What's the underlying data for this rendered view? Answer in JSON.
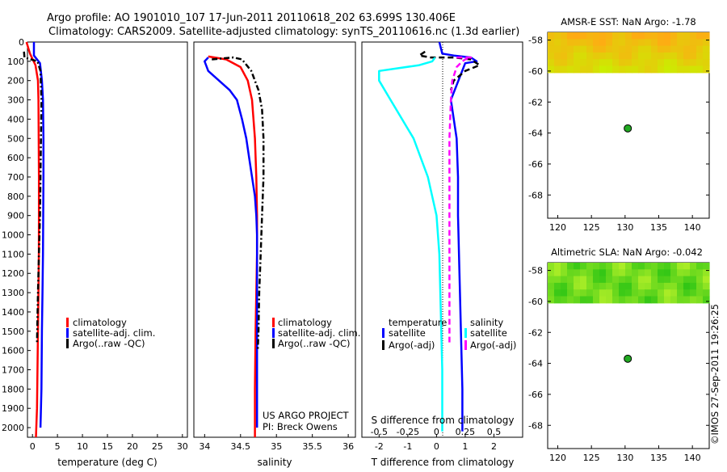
{
  "header": {
    "line1": "Argo profile: AO 1901010_107 17-Jun-2011 20110618_202 63.699S 130.406E",
    "line2": "Climatology: CARS2009. Satellite-adjusted climatology: synTS_20110616.nc (1.3d earlier)"
  },
  "credit": {
    "line1": "US ARGO PROJECT",
    "line2": "PI: Breck Owens"
  },
  "watermark": "©IMOS 27-Sep-2011 19:26:25",
  "colors": {
    "climatology": "#ff0000",
    "satellite": "#0000ff",
    "argo": "#000000",
    "satellite_diff_s": "#00ffff",
    "argo_diff_s": "#ff00ff",
    "sst_map_low": "#ffa500",
    "sst_map_high": "#c8f000",
    "sla_map": "#22cc22",
    "argo_marker": "#22aa22"
  },
  "chart_data": [
    {
      "type": "line",
      "id": "temperature",
      "xlabel": "temperature (deg C)",
      "ylabel": "",
      "xlim": [
        -1,
        31
      ],
      "ylim": [
        2050,
        0
      ],
      "xticks": [
        0,
        5,
        10,
        15,
        20,
        25,
        30
      ],
      "yticks": [
        0,
        100,
        200,
        300,
        400,
        500,
        600,
        700,
        800,
        900,
        1000,
        1100,
        1200,
        1300,
        1400,
        1500,
        1600,
        1700,
        1800,
        1900,
        2000
      ],
      "legend": [
        "climatology",
        "satellite-adj. clim.",
        "Argo(..raw -QC)"
      ],
      "series": [
        {
          "name": "climatology",
          "style": "solid",
          "color": "#ff0000",
          "x": [
            -1.2,
            -0.5,
            0.6,
            1.1,
            1.2,
            1.25,
            1.3,
            1.3,
            1.28,
            1.2,
            1.1,
            1.0,
            0.9,
            0.7
          ],
          "y": [
            0,
            60,
            120,
            200,
            300,
            500,
            700,
            900,
            1100,
            1300,
            1500,
            1700,
            1900,
            2050
          ]
        },
        {
          "name": "satellite-adj. clim.",
          "style": "solid",
          "color": "#0000ff",
          "x": [
            0.3,
            0.3,
            1.5,
            1.9,
            2.1,
            2.2,
            2.2,
            2.15,
            2.1,
            2.0,
            1.9,
            1.8,
            1.6
          ],
          "y": [
            0,
            70,
            110,
            200,
            300,
            500,
            700,
            900,
            1100,
            1300,
            1500,
            1800,
            2000
          ]
        },
        {
          "name": "Argo(..raw -QC)",
          "style": "dashdot",
          "color": "#000000",
          "x": [
            -1.7,
            -1.6,
            1.0,
            1.6,
            1.8,
            1.7,
            1.6,
            1.5,
            1.3,
            1.1,
            0.9
          ],
          "y": [
            50,
            80,
            100,
            150,
            300,
            500,
            700,
            900,
            1100,
            1300,
            1560
          ]
        }
      ]
    },
    {
      "type": "line",
      "id": "salinity",
      "xlabel": "salinity",
      "ylabel": "",
      "xlim": [
        33.85,
        36.1
      ],
      "ylim": [
        2050,
        0
      ],
      "xticks": [
        34,
        34.5,
        35,
        35.5,
        36
      ],
      "xtick_labels": [
        "34",
        "34.5",
        "35",
        "35.5",
        "36"
      ],
      "legend": [
        "climatology",
        "satellite-adj. clim.",
        "Argo(..raw -QC)"
      ],
      "series": [
        {
          "name": "climatology",
          "style": "solid",
          "color": "#ff0000",
          "x": [
            34.05,
            34.3,
            34.5,
            34.6,
            34.66,
            34.7,
            34.72,
            34.73,
            34.73,
            34.72,
            34.71,
            34.7,
            34.7
          ],
          "y": [
            75,
            90,
            130,
            200,
            300,
            500,
            700,
            900,
            1100,
            1300,
            1500,
            1800,
            2050
          ]
        },
        {
          "name": "satellite-adj. clim.",
          "style": "solid",
          "color": "#0000ff",
          "x": [
            34.05,
            34.0,
            34.05,
            34.2,
            34.35,
            34.45,
            34.52,
            34.58,
            34.62,
            34.66,
            34.7,
            34.72,
            34.73,
            34.73
          ],
          "y": [
            80,
            100,
            150,
            200,
            250,
            300,
            400,
            500,
            600,
            700,
            800,
            900,
            1000,
            2000
          ]
        },
        {
          "name": "Argo(..raw -QC)",
          "style": "dashdot",
          "color": "#000000",
          "x": [
            34.1,
            34.4,
            34.52,
            34.65,
            34.75,
            34.8,
            34.82,
            34.82,
            34.8,
            34.78,
            34.76,
            34.75,
            34.74
          ],
          "y": [
            90,
            80,
            90,
            150,
            250,
            350,
            500,
            700,
            900,
            1100,
            1300,
            1500,
            1600
          ]
        }
      ]
    },
    {
      "type": "line",
      "id": "difference",
      "xlabel": "T difference from climatology",
      "x2label": "S difference from climatology",
      "xlim": [
        -2.6,
        3.0
      ],
      "ylim": [
        2050,
        0
      ],
      "xticks": [
        -2,
        -1,
        0,
        1,
        2
      ],
      "xtick_labels": [
        "-2",
        "-1",
        "0",
        "1",
        "2"
      ],
      "x2ticks": [
        -0.5,
        -0.25,
        0,
        0.25,
        0.5
      ],
      "x2tick_labels": [
        "-0.5",
        "-0.25",
        "0",
        "0.25",
        "0.5"
      ],
      "legend_titles": [
        "temperature",
        "salinity"
      ],
      "legend": [
        "satellite",
        "Argo(-adj)",
        "satellite",
        "Argo(-adj)"
      ],
      "series": [
        {
          "name": "satellite",
          "quantity": "temperature",
          "style": "solid",
          "color": "#0000ff",
          "x": [
            0.1,
            0.2,
            0.6,
            1.2,
            1.4,
            1.0,
            0.5,
            0.7,
            0.75,
            0.75,
            0.8,
            0.85,
            0.9,
            0.9
          ],
          "y": [
            0,
            60,
            70,
            80,
            100,
            110,
            300,
            500,
            700,
            900,
            1200,
            1500,
            1800,
            2020
          ]
        },
        {
          "name": "Argo(-adj)",
          "quantity": "temperature",
          "style": "dashed",
          "color": "#000000",
          "x": [
            -0.4,
            -0.6,
            -0.2,
            0.6,
            1.2,
            1.5,
            1.0,
            0.6,
            0.5
          ],
          "y": [
            50,
            70,
            80,
            80,
            90,
            120,
            150,
            200,
            250
          ]
        },
        {
          "name": "satellite",
          "quantity": "salinity",
          "style": "solid",
          "color": "#00ffff",
          "x": [
            -0.05,
            -0.15,
            -0.6,
            -2.0,
            -2.0,
            -1.6,
            -0.8,
            -0.3,
            0.0,
            0.1,
            0.15,
            0.2,
            0.2
          ],
          "y": [
            80,
            100,
            120,
            150,
            200,
            300,
            500,
            700,
            900,
            1100,
            1400,
            1700,
            2020
          ]
        },
        {
          "name": "Argo(-adj)",
          "quantity": "salinity",
          "style": "dashed",
          "color": "#ff00ff",
          "x": [
            0.7,
            1.2,
            1.0,
            0.9,
            0.7,
            0.55,
            0.5,
            0.45,
            0.45,
            0.45,
            0.45
          ],
          "y": [
            80,
            80,
            90,
            100,
            130,
            200,
            300,
            500,
            800,
            1200,
            1560
          ]
        }
      ]
    },
    {
      "type": "heatmap",
      "id": "sst_map",
      "title": "AMSR-E SST: NaN Argo: -1.78",
      "xlim": [
        118.5,
        142.5
      ],
      "ylim": [
        -69.5,
        -57.5
      ],
      "xticks": [
        120,
        125,
        130,
        135,
        140
      ],
      "yticks": [
        -58,
        -60,
        -62,
        -64,
        -66,
        -68
      ],
      "data_ylim": [
        -60.1,
        -57.5
      ],
      "marker": {
        "x": 130.4,
        "y": -63.7
      }
    },
    {
      "type": "heatmap",
      "id": "sla_map",
      "title": "Altimetric SLA: NaN Argo: -0.042",
      "xlim": [
        118.5,
        142.5
      ],
      "ylim": [
        -69.5,
        -57.5
      ],
      "xticks": [
        120,
        125,
        130,
        135,
        140
      ],
      "yticks": [
        -58,
        -60,
        -62,
        -64,
        -66,
        -68
      ],
      "data_ylim": [
        -60.1,
        -57.5
      ],
      "marker": {
        "x": 130.4,
        "y": -63.7
      }
    }
  ]
}
